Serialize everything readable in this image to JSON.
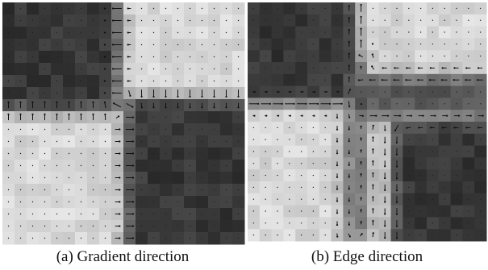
{
  "figure": {
    "panels": [
      {
        "caption": "(a) Gradient direction"
      },
      {
        "caption": "(b) Edge direction"
      }
    ]
  }
}
